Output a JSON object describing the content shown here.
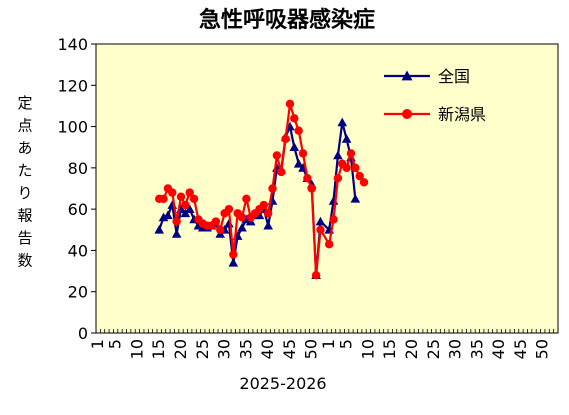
{
  "chart_data": {
    "type": "line",
    "title": "急性呼吸器感染症",
    "ylabel": "定点あたり報告数",
    "xlabel": "2025-2026",
    "ylim": [
      0,
      140
    ],
    "yticks": [
      0,
      20,
      40,
      60,
      80,
      100,
      120,
      140
    ],
    "x_tick_labels": [
      "1",
      "5",
      "10",
      "15",
      "20",
      "25",
      "30",
      "35",
      "40",
      "45",
      "50",
      "1",
      "5",
      "10",
      "15",
      "20",
      "25",
      "30",
      "35",
      "40",
      "45",
      "50"
    ],
    "grid": false,
    "legend_position": "top-right",
    "colors": {
      "plot_bg": "#FFFFCC",
      "axis": "#000000"
    },
    "series": [
      {
        "name": "全国",
        "color": "#000080",
        "marker": "triangle",
        "x": [
          15,
          16,
          17,
          18,
          19,
          20,
          21,
          22,
          23,
          24,
          25,
          26,
          27,
          28,
          29,
          30,
          31,
          32,
          33,
          34,
          35,
          36,
          37,
          38,
          39,
          40,
          41,
          42,
          43,
          44,
          45,
          46,
          47,
          48,
          49,
          50,
          51,
          52,
          1,
          2,
          3,
          4,
          5,
          6,
          7,
          8,
          9,
          10
        ],
        "y": [
          50,
          56,
          57,
          62,
          48,
          60,
          58,
          60,
          55,
          52,
          51,
          51,
          52,
          53,
          48,
          50,
          53,
          34,
          47,
          51,
          55,
          54,
          57,
          57,
          60,
          52,
          64,
          80,
          79,
          95,
          100,
          90,
          82,
          80,
          75,
          72,
          28,
          54,
          50,
          64,
          86,
          102,
          94,
          85,
          65,
          null,
          null,
          null
        ]
      },
      {
        "name": "新潟県",
        "color": "#FF0000",
        "marker": "circle",
        "x": [
          15,
          16,
          17,
          18,
          19,
          20,
          21,
          22,
          23,
          24,
          25,
          26,
          27,
          28,
          29,
          30,
          31,
          32,
          33,
          34,
          35,
          36,
          37,
          38,
          39,
          40,
          41,
          42,
          43,
          44,
          45,
          46,
          47,
          48,
          49,
          50,
          51,
          52,
          1,
          2,
          3,
          4,
          5,
          6,
          7,
          8,
          9,
          10
        ],
        "y": [
          65,
          65,
          70,
          68,
          54,
          66,
          62,
          68,
          65,
          55,
          53,
          52,
          52,
          54,
          50,
          58,
          60,
          38,
          58,
          56,
          65,
          56,
          58,
          60,
          62,
          58,
          70,
          86,
          78,
          94,
          111,
          104,
          98,
          87,
          75,
          70,
          28,
          50,
          43,
          55,
          75,
          82,
          80,
          87,
          80,
          76,
          73,
          null
        ]
      }
    ]
  }
}
